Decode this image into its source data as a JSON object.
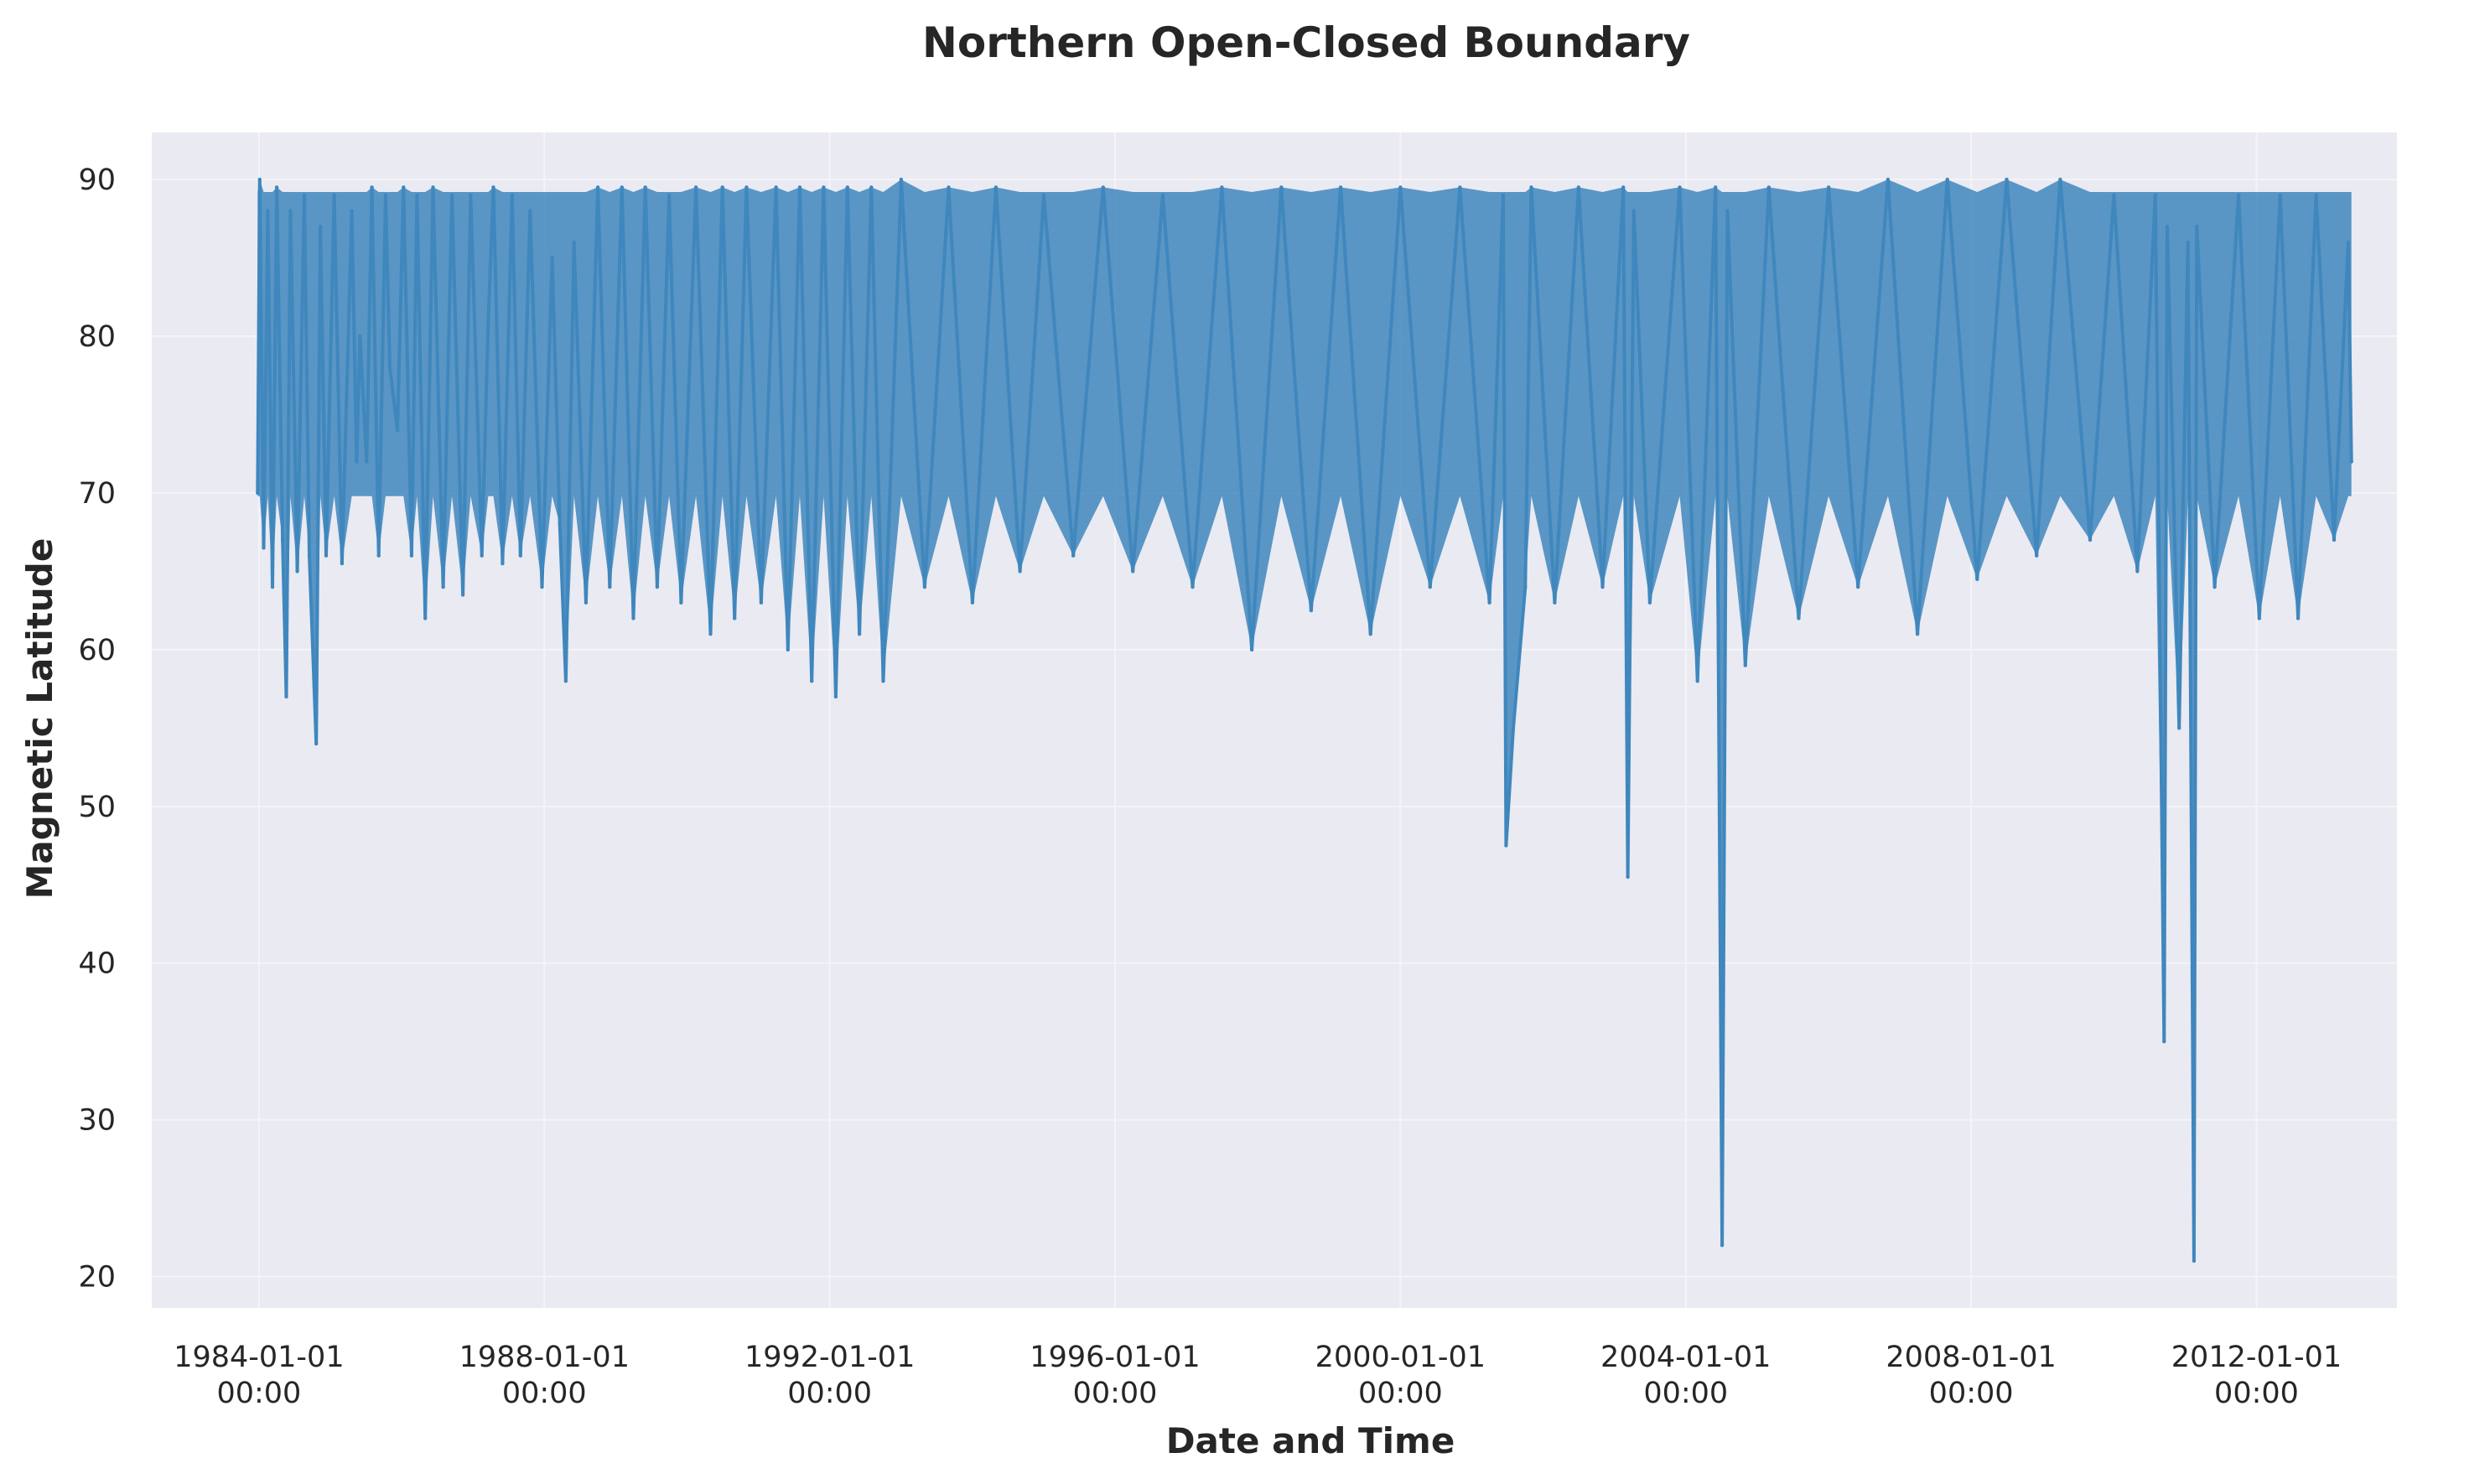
{
  "chart_data": {
    "type": "line",
    "title": "Northern Open-Closed Boundary",
    "xlabel": "Date and Time",
    "ylabel": "Magnetic Latitude",
    "xlim": [
      "1982-07-01",
      "2013-12-20"
    ],
    "ylim": [
      18,
      93
    ],
    "x_ticks": [
      {
        "date": "1984-01-01",
        "line1": "1984-01-01",
        "line2": "00:00"
      },
      {
        "date": "1988-01-01",
        "line1": "1988-01-01",
        "line2": "00:00"
      },
      {
        "date": "1992-01-01",
        "line1": "1992-01-01",
        "line2": "00:00"
      },
      {
        "date": "1996-01-01",
        "line1": "1996-01-01",
        "line2": "00:00"
      },
      {
        "date": "2000-01-01",
        "line1": "2000-01-01",
        "line2": "00:00"
      },
      {
        "date": "2004-01-01",
        "line1": "2004-01-01",
        "line2": "00:00"
      },
      {
        "date": "2008-01-01",
        "line1": "2008-01-01",
        "line2": "00:00"
      },
      {
        "date": "2012-01-01",
        "line1": "2012-01-01",
        "line2": "00:00"
      }
    ],
    "y_ticks": [
      20,
      30,
      40,
      50,
      60,
      70,
      80,
      90
    ],
    "grid": true,
    "colors": {
      "series": "#3f87bd",
      "plot_background": "#eaeaf2",
      "grid": "#f4f4f8",
      "text": "#262626"
    },
    "series": [
      {
        "points": [
          [
            "1983-12-25",
            70
          ],
          [
            "1984-01-05",
            90
          ],
          [
            "1984-01-25",
            66.5
          ],
          [
            "1984-02-15",
            88
          ],
          [
            "1984-03-10",
            64
          ],
          [
            "1984-04-01",
            89.5
          ],
          [
            "1984-05-01",
            67
          ],
          [
            "1984-05-20",
            57
          ],
          [
            "1984-06-10",
            88
          ],
          [
            "1984-07-15",
            65
          ],
          [
            "1984-08-20",
            89
          ],
          [
            "1984-09-15",
            66
          ],
          [
            "1984-10-20",
            54
          ],
          [
            "1984-11-10",
            87
          ],
          [
            "1984-12-10",
            66
          ],
          [
            "1985-01-20",
            89
          ],
          [
            "1985-03-01",
            65.5
          ],
          [
            "1985-04-20",
            88
          ],
          [
            "1985-05-15",
            72
          ],
          [
            "1985-06-01",
            80
          ],
          [
            "1985-07-05",
            72
          ],
          [
            "1985-08-01",
            89.5
          ],
          [
            "1985-09-05",
            66
          ],
          [
            "1985-10-10",
            89
          ],
          [
            "1985-11-01",
            78
          ],
          [
            "1985-12-10",
            74
          ],
          [
            "1986-01-10",
            89.5
          ],
          [
            "1986-02-20",
            66
          ],
          [
            "1986-03-20",
            89
          ],
          [
            "1986-05-01",
            62
          ],
          [
            "1986-06-10",
            89.5
          ],
          [
            "1986-08-01",
            64
          ],
          [
            "1986-09-15",
            89
          ],
          [
            "1986-11-10",
            63.5
          ],
          [
            "1986-12-20",
            89
          ],
          [
            "1987-02-15",
            66
          ],
          [
            "1987-03-20",
            81
          ],
          [
            "1987-04-15",
            89.5
          ],
          [
            "1987-06-01",
            65.5
          ],
          [
            "1987-07-20",
            89
          ],
          [
            "1987-09-01",
            66
          ],
          [
            "1987-10-20",
            88
          ],
          [
            "1987-12-20",
            64
          ],
          [
            "1988-02-10",
            85
          ],
          [
            "1988-03-20",
            68
          ],
          [
            "1988-04-20",
            58
          ],
          [
            "1988-06-01",
            86
          ],
          [
            "1988-08-01",
            63
          ],
          [
            "1988-10-01",
            89.5
          ],
          [
            "1988-12-01",
            64
          ],
          [
            "1989-02-01",
            89.5
          ],
          [
            "1989-04-01",
            62
          ],
          [
            "1989-06-01",
            89.5
          ],
          [
            "1989-08-01",
            64
          ],
          [
            "1989-10-01",
            89
          ],
          [
            "1989-12-01",
            63
          ],
          [
            "1990-02-15",
            89.5
          ],
          [
            "1990-05-01",
            61
          ],
          [
            "1990-07-01",
            89.5
          ],
          [
            "1990-09-01",
            62
          ],
          [
            "1990-11-01",
            89.5
          ],
          [
            "1991-01-15",
            63
          ],
          [
            "1991-04-01",
            89.5
          ],
          [
            "1991-06-01",
            60
          ],
          [
            "1991-08-01",
            89.5
          ],
          [
            "1991-10-01",
            58
          ],
          [
            "1991-12-01",
            89.5
          ],
          [
            "1992-02-01",
            57
          ],
          [
            "1992-04-01",
            89.5
          ],
          [
            "1992-06-01",
            61
          ],
          [
            "1992-08-01",
            89.5
          ],
          [
            "1992-10-01",
            58
          ],
          [
            "1993-01-01",
            90
          ],
          [
            "1993-05-01",
            64
          ],
          [
            "1993-09-01",
            89.5
          ],
          [
            "1994-01-01",
            63
          ],
          [
            "1994-05-01",
            89.5
          ],
          [
            "1994-09-01",
            65
          ],
          [
            "1995-01-01",
            89
          ],
          [
            "1995-06-01",
            66
          ],
          [
            "1995-11-01",
            89.5
          ],
          [
            "1996-04-01",
            65
          ],
          [
            "1996-09-01",
            89
          ],
          [
            "1997-02-01",
            64
          ],
          [
            "1997-07-01",
            89.5
          ],
          [
            "1997-12-01",
            60
          ],
          [
            "1998-05-01",
            89.5
          ],
          [
            "1998-10-01",
            62.5
          ],
          [
            "1999-03-01",
            89.5
          ],
          [
            "1999-08-01",
            61
          ],
          [
            "2000-01-01",
            89.5
          ],
          [
            "2000-06-01",
            64
          ],
          [
            "2000-11-01",
            89.5
          ],
          [
            "2001-04-01",
            63
          ],
          [
            "2001-06-10",
            89
          ],
          [
            "2001-06-25",
            47.5
          ],
          [
            "2001-08-01",
            55
          ],
          [
            "2001-10-01",
            64
          ],
          [
            "2001-11-01",
            89.5
          ],
          [
            "2002-03-01",
            63
          ],
          [
            "2002-07-01",
            89.5
          ],
          [
            "2002-11-01",
            64
          ],
          [
            "2003-02-15",
            89.5
          ],
          [
            "2003-03-10",
            45.5
          ],
          [
            "2003-04-10",
            88
          ],
          [
            "2003-07-01",
            63
          ],
          [
            "2003-12-01",
            89.5
          ],
          [
            "2004-03-01",
            58
          ],
          [
            "2004-06-01",
            89.5
          ],
          [
            "2004-07-05",
            22
          ],
          [
            "2004-08-01",
            88
          ],
          [
            "2004-11-01",
            59
          ],
          [
            "2005-03-01",
            89.5
          ],
          [
            "2005-08-01",
            62
          ],
          [
            "2006-01-01",
            89.5
          ],
          [
            "2006-06-01",
            64
          ],
          [
            "2006-11-01",
            90
          ],
          [
            "2007-04-01",
            61
          ],
          [
            "2007-09-01",
            90
          ],
          [
            "2008-02-01",
            64.5
          ],
          [
            "2008-07-01",
            90
          ],
          [
            "2008-12-01",
            66
          ],
          [
            "2009-04-01",
            90
          ],
          [
            "2009-09-01",
            67
          ],
          [
            "2010-01-01",
            89
          ],
          [
            "2010-05-01",
            65
          ],
          [
            "2010-08-01",
            89
          ],
          [
            "2010-09-15",
            35
          ],
          [
            "2010-10-01",
            87
          ],
          [
            "2010-12-01",
            55
          ],
          [
            "2011-01-15",
            86
          ],
          [
            "2011-02-15",
            21
          ],
          [
            "2011-03-01",
            87
          ],
          [
            "2011-06-01",
            64
          ],
          [
            "2011-10-01",
            89
          ],
          [
            "2012-01-15",
            62
          ],
          [
            "2012-05-01",
            89
          ],
          [
            "2012-08-01",
            62
          ],
          [
            "2012-11-01",
            89
          ],
          [
            "2013-02-01",
            67
          ],
          [
            "2013-04-15",
            86
          ],
          [
            "2013-05-01",
            72
          ]
        ]
      }
    ]
  }
}
